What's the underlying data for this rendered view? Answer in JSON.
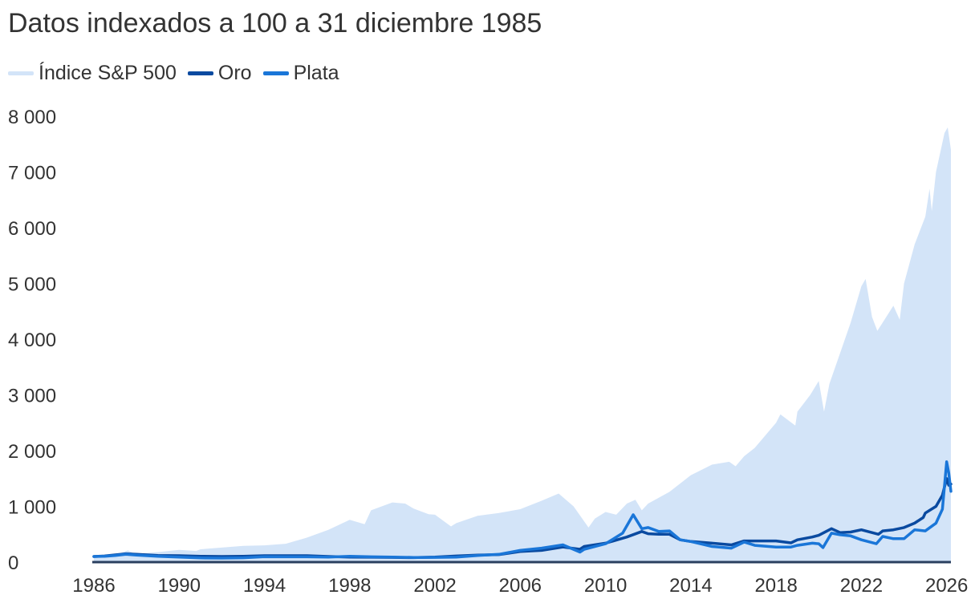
{
  "chart_data": {
    "type": "area",
    "title": "Datos indexados a 100 a 31 diciembre 1985",
    "xlabel": "",
    "ylabel": "",
    "xlim": [
      1986,
      2026.2
    ],
    "ylim": [
      0,
      8000
    ],
    "x_ticks": [
      "1986",
      "1990",
      "1994",
      "1998",
      "2002",
      "2006",
      "2010",
      "2014",
      "2018",
      "2022",
      "2026"
    ],
    "x_tick_values": [
      1986,
      1990,
      1994,
      1998,
      2002,
      2006,
      2010,
      2014,
      2018,
      2022,
      2026
    ],
    "y_ticks": [
      "0",
      "1 000",
      "2 000",
      "3 000",
      "4 000",
      "5 000",
      "6 000",
      "7 000",
      "8 000"
    ],
    "y_tick_values": [
      0,
      1000,
      2000,
      3000,
      4000,
      5000,
      6000,
      7000,
      8000
    ],
    "grid": false,
    "legend_position": "top-left",
    "series": [
      {
        "name": "Índice S&P 500",
        "style": "area",
        "color": "#d3e4f8",
        "points": [
          [
            1986,
            100
          ],
          [
            1987,
            130
          ],
          [
            1987.6,
            210
          ],
          [
            1987.85,
            160
          ],
          [
            1988,
            150
          ],
          [
            1989,
            180
          ],
          [
            1990,
            220
          ],
          [
            1990.8,
            200
          ],
          [
            1991,
            230
          ],
          [
            1992,
            260
          ],
          [
            1993,
            290
          ],
          [
            1994,
            300
          ],
          [
            1995,
            330
          ],
          [
            1996,
            440
          ],
          [
            1997,
            580
          ],
          [
            1998,
            760
          ],
          [
            1998.7,
            680
          ],
          [
            1999,
            930
          ],
          [
            2000,
            1070
          ],
          [
            2000.6,
            1050
          ],
          [
            2001,
            960
          ],
          [
            2001.7,
            860
          ],
          [
            2002,
            850
          ],
          [
            2002.75,
            640
          ],
          [
            2003,
            700
          ],
          [
            2004,
            830
          ],
          [
            2005,
            880
          ],
          [
            2006,
            950
          ],
          [
            2007,
            1100
          ],
          [
            2007.8,
            1230
          ],
          [
            2008.5,
            1000
          ],
          [
            2009.2,
            620
          ],
          [
            2009.5,
            780
          ],
          [
            2010,
            900
          ],
          [
            2010.5,
            850
          ],
          [
            2011,
            1050
          ],
          [
            2011.4,
            1120
          ],
          [
            2011.7,
            930
          ],
          [
            2012,
            1050
          ],
          [
            2013,
            1260
          ],
          [
            2014,
            1560
          ],
          [
            2015,
            1750
          ],
          [
            2015.8,
            1800
          ],
          [
            2016.1,
            1720
          ],
          [
            2016.5,
            1900
          ],
          [
            2017,
            2050
          ],
          [
            2018,
            2500
          ],
          [
            2018.2,
            2650
          ],
          [
            2018.9,
            2450
          ],
          [
            2019,
            2700
          ],
          [
            2019.6,
            3000
          ],
          [
            2020,
            3250
          ],
          [
            2020.25,
            2700
          ],
          [
            2020.5,
            3200
          ],
          [
            2021,
            3750
          ],
          [
            2021.5,
            4300
          ],
          [
            2022,
            4950
          ],
          [
            2022.2,
            5080
          ],
          [
            2022.5,
            4400
          ],
          [
            2022.75,
            4150
          ],
          [
            2023,
            4300
          ],
          [
            2023.5,
            4600
          ],
          [
            2023.8,
            4350
          ],
          [
            2024,
            5000
          ],
          [
            2024.5,
            5700
          ],
          [
            2025,
            6200
          ],
          [
            2025.2,
            6700
          ],
          [
            2025.3,
            6300
          ],
          [
            2025.5,
            7000
          ],
          [
            2025.9,
            7700
          ],
          [
            2026.05,
            7800
          ],
          [
            2026.2,
            7400
          ]
        ]
      },
      {
        "name": "Oro",
        "style": "line",
        "color": "#0a4aa0",
        "points": [
          [
            1986,
            100
          ],
          [
            1986.5,
            110
          ],
          [
            1987,
            130
          ],
          [
            1987.5,
            150
          ],
          [
            1988,
            140
          ],
          [
            1989,
            120
          ],
          [
            1990,
            115
          ],
          [
            1991,
            105
          ],
          [
            1992,
            100
          ],
          [
            1993,
            105
          ],
          [
            1994,
            115
          ],
          [
            1995,
            115
          ],
          [
            1996,
            115
          ],
          [
            1997,
            100
          ],
          [
            1998,
            90
          ],
          [
            1999,
            88
          ],
          [
            2000,
            85
          ],
          [
            2001,
            80
          ],
          [
            2002,
            90
          ],
          [
            2003,
            110
          ],
          [
            2004,
            125
          ],
          [
            2005,
            135
          ],
          [
            2006,
            190
          ],
          [
            2007,
            210
          ],
          [
            2008,
            270
          ],
          [
            2008.8,
            230
          ],
          [
            2009,
            280
          ],
          [
            2010,
            340
          ],
          [
            2011,
            450
          ],
          [
            2011.7,
            550
          ],
          [
            2012,
            510
          ],
          [
            2012.5,
            500
          ],
          [
            2013,
            500
          ],
          [
            2013.5,
            400
          ],
          [
            2014,
            370
          ],
          [
            2015,
            340
          ],
          [
            2015.9,
            310
          ],
          [
            2016.5,
            380
          ],
          [
            2017,
            380
          ],
          [
            2018,
            380
          ],
          [
            2018.7,
            345
          ],
          [
            2019,
            400
          ],
          [
            2019.7,
            450
          ],
          [
            2020,
            480
          ],
          [
            2020.6,
            600
          ],
          [
            2021,
            530
          ],
          [
            2021.5,
            540
          ],
          [
            2022,
            580
          ],
          [
            2022.8,
            500
          ],
          [
            2023,
            560
          ],
          [
            2023.5,
            580
          ],
          [
            2024,
            620
          ],
          [
            2024.5,
            700
          ],
          [
            2024.9,
            800
          ],
          [
            2025,
            880
          ],
          [
            2025.5,
            1000
          ],
          [
            2025.8,
            1200
          ],
          [
            2026,
            1500
          ],
          [
            2026.1,
            1380
          ],
          [
            2026.2,
            1400
          ]
        ]
      },
      {
        "name": "Plata",
        "style": "line",
        "color": "#1a76d8",
        "points": [
          [
            1986,
            100
          ],
          [
            1986.5,
            105
          ],
          [
            1987,
            120
          ],
          [
            1987.5,
            140
          ],
          [
            1988,
            125
          ],
          [
            1989,
            105
          ],
          [
            1990,
            90
          ],
          [
            1991,
            75
          ],
          [
            1992,
            72
          ],
          [
            1993,
            78
          ],
          [
            1994,
            98
          ],
          [
            1995,
            95
          ],
          [
            1996,
            95
          ],
          [
            1997,
            90
          ],
          [
            1998,
            105
          ],
          [
            1999,
            95
          ],
          [
            2000,
            90
          ],
          [
            2001,
            83
          ],
          [
            2002,
            85
          ],
          [
            2003,
            90
          ],
          [
            2004,
            120
          ],
          [
            2005,
            140
          ],
          [
            2006,
            210
          ],
          [
            2007,
            250
          ],
          [
            2008,
            310
          ],
          [
            2008.8,
            180
          ],
          [
            2009,
            230
          ],
          [
            2010,
            330
          ],
          [
            2010.8,
            520
          ],
          [
            2011.3,
            850
          ],
          [
            2011.7,
            600
          ],
          [
            2012,
            620
          ],
          [
            2012.5,
            550
          ],
          [
            2013,
            560
          ],
          [
            2013.5,
            400
          ],
          [
            2014,
            370
          ],
          [
            2015,
            280
          ],
          [
            2015.9,
            250
          ],
          [
            2016.5,
            360
          ],
          [
            2017,
            300
          ],
          [
            2018,
            270
          ],
          [
            2018.7,
            270
          ],
          [
            2019,
            300
          ],
          [
            2019.7,
            340
          ],
          [
            2020,
            330
          ],
          [
            2020.2,
            260
          ],
          [
            2020.6,
            520
          ],
          [
            2021,
            490
          ],
          [
            2021.5,
            470
          ],
          [
            2022,
            400
          ],
          [
            2022.7,
            330
          ],
          [
            2023,
            460
          ],
          [
            2023.5,
            420
          ],
          [
            2024,
            420
          ],
          [
            2024.5,
            580
          ],
          [
            2025,
            560
          ],
          [
            2025.5,
            700
          ],
          [
            2025.8,
            950
          ],
          [
            2026,
            1800
          ],
          [
            2026.1,
            1600
          ],
          [
            2026.2,
            1270
          ]
        ]
      }
    ]
  }
}
